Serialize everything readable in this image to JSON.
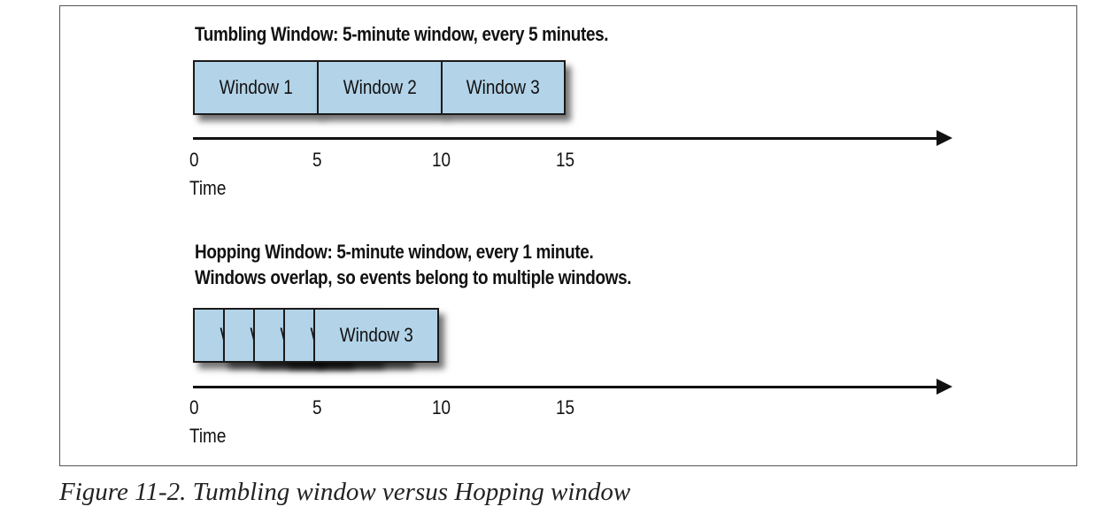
{
  "tumbling": {
    "title": "Tumbling Window: 5-minute window, every 5 minutes.",
    "windows": [
      "Window 1",
      "Window 2",
      "Window 3"
    ],
    "ticks": [
      "0",
      "5",
      "10",
      "15"
    ],
    "axis_label": "Time"
  },
  "hopping": {
    "title_line1": "Hopping Window: 5-minute window, every 1 minute.",
    "title_line2": "Windows overlap, so events belong to multiple windows.",
    "partial_labels": [
      "W",
      "W",
      "W",
      "W"
    ],
    "last_window": "Window 3",
    "ticks": [
      "0",
      "5",
      "10",
      "15"
    ],
    "axis_label": "Time"
  },
  "caption": "Figure 11-2. Tumbling window versus Hopping window",
  "colors": {
    "window_fill": "#b3d3e8",
    "border": "#1a1a1a"
  }
}
